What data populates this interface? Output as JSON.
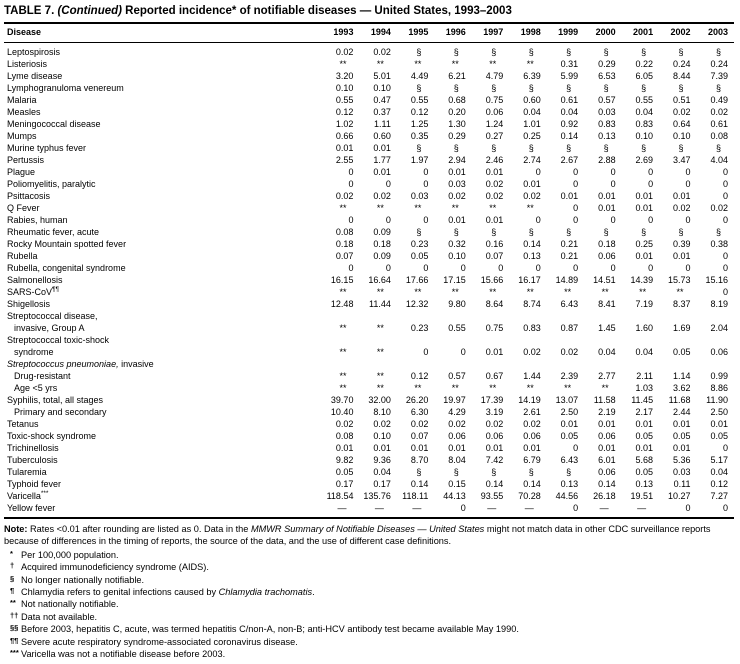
{
  "title": {
    "table_label": "TABLE 7. ",
    "continued": "(Continued)",
    "text": " Reported incidence* of notifiable diseases — United States, 1993–2003"
  },
  "table": {
    "columns": [
      "Disease",
      "1993",
      "1994",
      "1995",
      "1996",
      "1997",
      "1998",
      "1999",
      "2000",
      "2001",
      "2002",
      "2003"
    ],
    "rows": [
      {
        "label": "Leptospirosis",
        "values": [
          "0.02",
          "0.02",
          "§",
          "§",
          "§",
          "§",
          "§",
          "§",
          "§",
          "§",
          "§"
        ]
      },
      {
        "label": "Listeriosis",
        "values": [
          "**",
          "**",
          "**",
          "**",
          "**",
          "**",
          "0.31",
          "0.29",
          "0.22",
          "0.24",
          "0.24"
        ]
      },
      {
        "label": "Lyme disease",
        "values": [
          "3.20",
          "5.01",
          "4.49",
          "6.21",
          "4.79",
          "6.39",
          "5.99",
          "6.53",
          "6.05",
          "8.44",
          "7.39"
        ]
      },
      {
        "label": "Lymphogranuloma venereum",
        "values": [
          "0.10",
          "0.10",
          "§",
          "§",
          "§",
          "§",
          "§",
          "§",
          "§",
          "§",
          "§"
        ]
      },
      {
        "label": "Malaria",
        "values": [
          "0.55",
          "0.47",
          "0.55",
          "0.68",
          "0.75",
          "0.60",
          "0.61",
          "0.57",
          "0.55",
          "0.51",
          "0.49"
        ]
      },
      {
        "label": "Measles",
        "values": [
          "0.12",
          "0.37",
          "0.12",
          "0.20",
          "0.06",
          "0.04",
          "0.04",
          "0.03",
          "0.04",
          "0.02",
          "0.02"
        ]
      },
      {
        "label": "Meningococcal disease",
        "values": [
          "1.02",
          "1.11",
          "1.25",
          "1.30",
          "1.24",
          "1.01",
          "0.92",
          "0.83",
          "0.83",
          "0.64",
          "0.61"
        ]
      },
      {
        "label": "Mumps",
        "values": [
          "0.66",
          "0.60",
          "0.35",
          "0.29",
          "0.27",
          "0.25",
          "0.14",
          "0.13",
          "0.10",
          "0.10",
          "0.08"
        ]
      },
      {
        "label": "Murine typhus fever",
        "values": [
          "0.01",
          "0.01",
          "§",
          "§",
          "§",
          "§",
          "§",
          "§",
          "§",
          "§",
          "§"
        ]
      },
      {
        "label": "Pertussis",
        "values": [
          "2.55",
          "1.77",
          "1.97",
          "2.94",
          "2.46",
          "2.74",
          "2.67",
          "2.88",
          "2.69",
          "3.47",
          "4.04"
        ]
      },
      {
        "label": "Plague",
        "values": [
          "0",
          "0.01",
          "0",
          "0.01",
          "0.01",
          "0",
          "0",
          "0",
          "0",
          "0",
          "0"
        ]
      },
      {
        "label": "Poliomyelitis, paralytic",
        "values": [
          "0",
          "0",
          "0",
          "0.03",
          "0.02",
          "0.01",
          "0",
          "0",
          "0",
          "0",
          "0"
        ]
      },
      {
        "label": "Psittacosis",
        "values": [
          "0.02",
          "0.02",
          "0.03",
          "0.02",
          "0.02",
          "0.02",
          "0.01",
          "0.01",
          "0.01",
          "0.01",
          "0"
        ]
      },
      {
        "label": "Q Fever",
        "values": [
          "**",
          "**",
          "**",
          "**",
          "**",
          "**",
          "0",
          "0.01",
          "0.01",
          "0.02",
          "0.02"
        ]
      },
      {
        "label": "Rabies, human",
        "values": [
          "0",
          "0",
          "0",
          "0.01",
          "0.01",
          "0",
          "0",
          "0",
          "0",
          "0",
          "0"
        ]
      },
      {
        "label": "Rheumatic fever, acute",
        "values": [
          "0.08",
          "0.09",
          "§",
          "§",
          "§",
          "§",
          "§",
          "§",
          "§",
          "§",
          "§"
        ]
      },
      {
        "label": "Rocky Mountain spotted fever",
        "values": [
          "0.18",
          "0.18",
          "0.23",
          "0.32",
          "0.16",
          "0.14",
          "0.21",
          "0.18",
          "0.25",
          "0.39",
          "0.38"
        ]
      },
      {
        "label": "Rubella",
        "values": [
          "0.07",
          "0.09",
          "0.05",
          "0.10",
          "0.07",
          "0.13",
          "0.21",
          "0.06",
          "0.01",
          "0.01",
          "0"
        ]
      },
      {
        "label": "Rubella, congenital syndrome",
        "values": [
          "0",
          "0",
          "0",
          "0",
          "0",
          "0",
          "0",
          "0",
          "0",
          "0",
          "0"
        ]
      },
      {
        "label": "Salmonellosis",
        "values": [
          "16.15",
          "16.64",
          "17.66",
          "17.15",
          "15.66",
          "16.17",
          "14.89",
          "14.51",
          "14.39",
          "15.73",
          "15.16"
        ]
      },
      {
        "label": "SARS-CoV",
        "sup": "¶¶",
        "values": [
          "**",
          "**",
          "**",
          "**",
          "**",
          "**",
          "**",
          "**",
          "**",
          "**",
          "0"
        ]
      },
      {
        "label": "Shigellosis",
        "values": [
          "12.48",
          "11.44",
          "12.32",
          "9.80",
          "8.64",
          "8.74",
          "6.43",
          "8.41",
          "7.19",
          "8.37",
          "8.19"
        ]
      },
      {
        "label": "Streptococcal disease,",
        "label2": "invasive, Group A",
        "values": [
          "**",
          "**",
          "0.23",
          "0.55",
          "0.75",
          "0.83",
          "0.87",
          "1.45",
          "1.60",
          "1.69",
          "2.04"
        ]
      },
      {
        "label": "Streptococcal toxic-shock",
        "label2": "syndrome",
        "values": [
          "**",
          "**",
          "0",
          "0",
          "0.01",
          "0.02",
          "0.02",
          "0.04",
          "0.04",
          "0.05",
          "0.06"
        ]
      },
      {
        "italic_part": "Streptococcus pneumoniae,",
        "label": " invasive",
        "values": null
      },
      {
        "label": "Drug-resistant",
        "indent": true,
        "values": [
          "**",
          "**",
          "0.12",
          "0.57",
          "0.67",
          "1.44",
          "2.39",
          "2.77",
          "2.11",
          "1.14",
          "0.99"
        ]
      },
      {
        "label": "Age <5 yrs",
        "indent": true,
        "values": [
          "**",
          "**",
          "**",
          "**",
          "**",
          "**",
          "**",
          "**",
          "1.03",
          "3.62",
          "8.86"
        ]
      },
      {
        "label": "Syphilis, total, all stages",
        "values": [
          "39.70",
          "32.00",
          "26.20",
          "19.97",
          "17.39",
          "14.19",
          "13.07",
          "11.58",
          "11.45",
          "11.68",
          "11.90"
        ]
      },
      {
        "label": "Primary and secondary",
        "indent": true,
        "values": [
          "10.40",
          "8.10",
          "6.30",
          "4.29",
          "3.19",
          "2.61",
          "2.50",
          "2.19",
          "2.17",
          "2.44",
          "2.50"
        ]
      },
      {
        "label": "Tetanus",
        "values": [
          "0.02",
          "0.02",
          "0.02",
          "0.02",
          "0.02",
          "0.02",
          "0.01",
          "0.01",
          "0.01",
          "0.01",
          "0.01"
        ]
      },
      {
        "label": "Toxic-shock syndrome",
        "values": [
          "0.08",
          "0.10",
          "0.07",
          "0.06",
          "0.06",
          "0.06",
          "0.05",
          "0.06",
          "0.05",
          "0.05",
          "0.05"
        ]
      },
      {
        "label": "Trichinellosis",
        "values": [
          "0.01",
          "0.01",
          "0.01",
          "0.01",
          "0.01",
          "0.01",
          "0",
          "0.01",
          "0.01",
          "0.01",
          "0"
        ]
      },
      {
        "label": "Tuberculosis",
        "values": [
          "9.82",
          "9.36",
          "8.70",
          "8.04",
          "7.42",
          "6.79",
          "6.43",
          "6.01",
          "5.68",
          "5.36",
          "5.17"
        ]
      },
      {
        "label": "Tularemia",
        "values": [
          "0.05",
          "0.04",
          "§",
          "§",
          "§",
          "§",
          "§",
          "0.06",
          "0.05",
          "0.03",
          "0.04"
        ]
      },
      {
        "label": "Typhoid fever",
        "values": [
          "0.17",
          "0.17",
          "0.14",
          "0.15",
          "0.14",
          "0.14",
          "0.13",
          "0.14",
          "0.13",
          "0.11",
          "0.12"
        ]
      },
      {
        "label": "Varicella",
        "sup": "***",
        "values": [
          "118.54",
          "135.76",
          "118.11",
          "44.13",
          "93.55",
          "70.28",
          "44.56",
          "26.18",
          "19.51",
          "10.27",
          "7.27"
        ]
      },
      {
        "label": "Yellow fever",
        "values": [
          "—",
          "—",
          "—",
          "0",
          "—",
          "—",
          "0",
          "—",
          "—",
          "0",
          "0"
        ]
      }
    ]
  },
  "notes": {
    "note_parts": [
      {
        "t": "Note:",
        "b": true
      },
      {
        "t": " Rates <0.01 after rounding are listed as 0. Data in the "
      },
      {
        "t": "MMWR Summary of Notifiable Diseases — United States",
        "i": true
      },
      {
        "t": " might not match data in other CDC surveillance reports because of differences in the timing of reports, the source of the data, and the use of different case definitions."
      }
    ],
    "footnotes": [
      {
        "m": "*",
        "parts": [
          {
            "t": "Per 100,000 population."
          }
        ]
      },
      {
        "m": "†",
        "parts": [
          {
            "t": "Acquired immunodeficiency syndrome (AIDS)."
          }
        ]
      },
      {
        "m": "§",
        "parts": [
          {
            "t": "No longer nationally notifiable."
          }
        ]
      },
      {
        "m": "¶",
        "parts": [
          {
            "t": "Chlamydia refers to genital infections caused by "
          },
          {
            "t": "Chlamydia trachomatis",
            "i": true
          },
          {
            "t": "."
          }
        ]
      },
      {
        "m": "**",
        "parts": [
          {
            "t": "Not nationally notifiable."
          }
        ]
      },
      {
        "m": "††",
        "parts": [
          {
            "t": "Data not available."
          }
        ]
      },
      {
        "m": "§§",
        "parts": [
          {
            "t": "Before 2003, hepatitis C, acute, was termed hepatitis C/non-A, non-B; anti-HCV antibody test became available May 1990."
          }
        ]
      },
      {
        "m": "¶¶",
        "parts": [
          {
            "t": "Severe acute respiratory syndrome-associated coronavirus disease."
          }
        ]
      },
      {
        "m": "***",
        "parts": [
          {
            "t": "Varicella was not a notifiable disease before 2003."
          }
        ]
      }
    ]
  }
}
